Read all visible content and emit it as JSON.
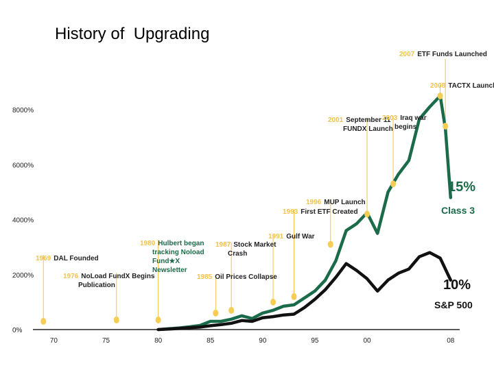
{
  "slide": {
    "title": "History of  Upgrading"
  },
  "chart_data": {
    "type": "line",
    "title": "History of  Upgrading",
    "x_ticks": [
      "70",
      "75",
      "80",
      "85",
      "90",
      "95",
      "00",
      "08"
    ],
    "y_ticks": [
      "0%",
      "2000%",
      "4000%",
      "6000%",
      "8000%"
    ],
    "ylim": [
      0,
      8000
    ],
    "xlim": [
      1968,
      2009
    ],
    "grid": false,
    "series": [
      {
        "name": "Class 3",
        "color": "#1a6b4a",
        "end_label": "15%",
        "x": [
          1980,
          1981,
          1982,
          1983,
          1984,
          1985,
          1986,
          1987,
          1988,
          1989,
          1990,
          1991,
          1992,
          1993,
          1994,
          1995,
          1996,
          1997,
          1998,
          1999,
          2000,
          2001,
          2002,
          2003,
          2004,
          2005,
          2006,
          2007,
          2007.5,
          2008
        ],
        "values": [
          0,
          30,
          60,
          100,
          150,
          300,
          300,
          380,
          500,
          400,
          600,
          700,
          850,
          900,
          1150,
          1400,
          1800,
          2500,
          3600,
          3850,
          4250,
          3500,
          5000,
          5650,
          6150,
          7650,
          8100,
          8500,
          7300,
          4800
        ]
      },
      {
        "name": "S&P 500",
        "color": "#111111",
        "end_label": "10%",
        "x": [
          1980,
          1981,
          1982,
          1983,
          1984,
          1985,
          1986,
          1987,
          1988,
          1989,
          1990,
          1991,
          1992,
          1993,
          1994,
          1995,
          1996,
          1997,
          1998,
          1999,
          2000,
          2001,
          2002,
          2003,
          2004,
          2005,
          2006,
          2007,
          2008
        ],
        "values": [
          0,
          20,
          40,
          70,
          90,
          140,
          180,
          230,
          330,
          300,
          430,
          470,
          530,
          560,
          800,
          1100,
          1450,
          1900,
          2400,
          2150,
          1850,
          1400,
          1800,
          2050,
          2200,
          2650,
          2800,
          2600,
          1800
        ]
      }
    ],
    "annotations": [
      {
        "year": "1969",
        "text": "DAL Founded",
        "x": 1969,
        "y": 300
      },
      {
        "year": "1976",
        "text": "NoLoad FundX Begins",
        "text2": "Publication",
        "x": 1976,
        "y": 350
      },
      {
        "year": "1980",
        "text": "Hulbert began",
        "text2": "tracking Noload",
        "text3": "Fund★X",
        "text4": "Newsletter",
        "x": 1980,
        "y": 350
      },
      {
        "year": "1985",
        "text": "Oil Prices Collapse",
        "x": 1985.5,
        "y": 600
      },
      {
        "year": "1987",
        "text": "Stock Market",
        "text2": "Crash",
        "x": 1987,
        "y": 700
      },
      {
        "year": "1991",
        "text": "Gulf War",
        "x": 1991,
        "y": 1000
      },
      {
        "year": "1993",
        "text": "First ETF Created",
        "x": 1993,
        "y": 1200
      },
      {
        "year": "1996",
        "text": "MUP Launch",
        "x": 1996.5,
        "y": 3100
      },
      {
        "year": "2001",
        "text": "September 11",
        "text2": "FUNDX Launch",
        "x": 2000,
        "y": 4200
      },
      {
        "year": "2003",
        "text": "Iraq war",
        "text2": "begins",
        "x": 2002.5,
        "y": 5300
      },
      {
        "year": "2007",
        "text": "ETF Funds Launched",
        "x": 2007.5,
        "y": 7400
      },
      {
        "year": "2008",
        "text": "TACTX Launch",
        "x": 2007,
        "y": 8500
      }
    ],
    "end_labels": [
      {
        "pct": "15%",
        "name": "Class 3"
      },
      {
        "pct": "10%",
        "name": "S&P 500"
      }
    ]
  }
}
